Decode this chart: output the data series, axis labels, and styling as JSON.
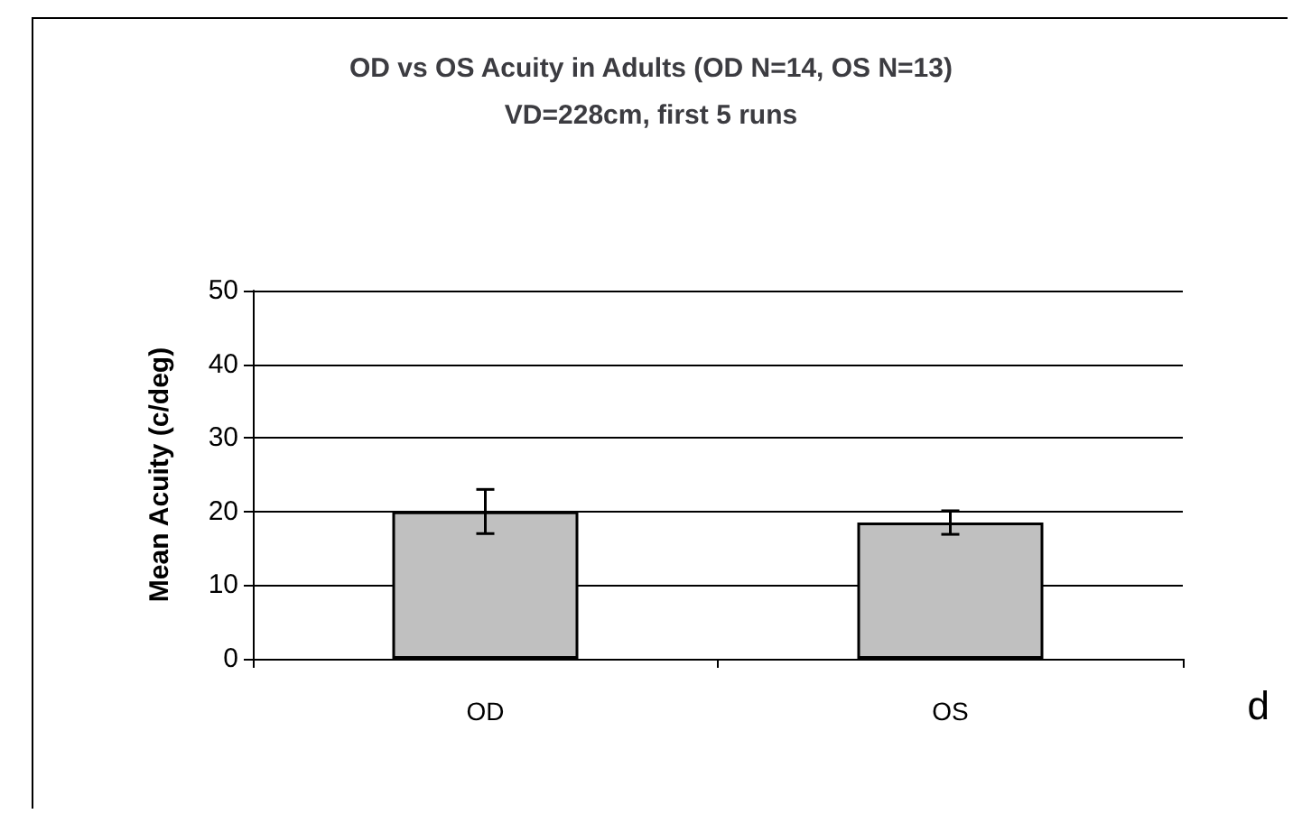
{
  "chart_data": {
    "type": "bar",
    "title": "OD vs OS Acuity in Adults (OD N=14, OS N=13)\nVD=228cm, first 5 runs",
    "ylabel": "Mean Acuity (c/deg)",
    "categories": [
      "OD",
      "OS"
    ],
    "values": [
      20,
      18.5
    ],
    "errors": [
      3,
      1.6
    ],
    "color": "#c0c0c0",
    "ylim": [
      0,
      50
    ],
    "yticks": [
      0,
      10,
      20,
      30,
      40,
      50
    ],
    "grid": "y",
    "annotations": [
      "d"
    ]
  }
}
